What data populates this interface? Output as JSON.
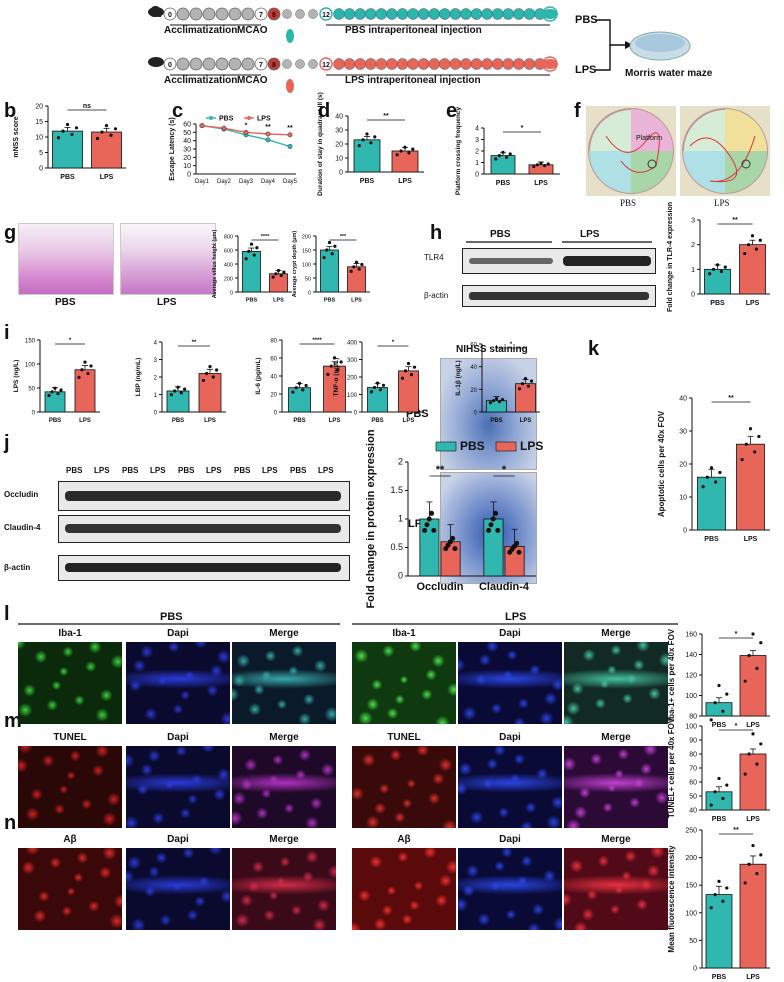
{
  "panel_letters": [
    "a",
    "b",
    "c",
    "d",
    "e",
    "f",
    "g",
    "h",
    "i",
    "j",
    "k",
    "l",
    "m",
    "n"
  ],
  "timeline": {
    "days_top": [
      "0",
      "7",
      "8",
      "12",
      "40"
    ],
    "days_bottom": [
      "0",
      "7",
      "8",
      "12",
      "40"
    ],
    "acclimatization": "Acclimatization",
    "mcao": "MCAO",
    "pbs_injection": "PBS intraperitoneal injection",
    "lps_injection": "LPS intraperitoneal injection",
    "pbs": "PBS",
    "lps": "LPS",
    "morris": "Morris water maze",
    "colors": {
      "teal": "#2bb5ad",
      "red": "#e8655a",
      "gray": "#b3b3b3",
      "mcao": "#c23b36"
    }
  },
  "groups": {
    "pbs": "PBS",
    "lps": "LPS"
  },
  "colors": {
    "pbs": "#1aa39a",
    "lps": "#e8655a",
    "pbs_light": "#2fb7b0"
  },
  "g_images": {
    "pbs": "PBS",
    "lps": "LPS"
  },
  "h_blot": {
    "tlr4": "TLR4",
    "actin": "β-actin",
    "pbs": "PBS",
    "lps": "LPS"
  },
  "j_blot": {
    "occludin": "Occludin",
    "claudin": "Claudin-4",
    "actin": "β-actin",
    "lanes": [
      "PBS",
      "LPS",
      "PBS",
      "LPS",
      "PBS",
      "LPS",
      "PBS",
      "LPS",
      "PBS",
      "LPS"
    ]
  },
  "k_images": {
    "title": "NIHSS staining",
    "pbs": "PBS",
    "lps": "LPS"
  },
  "f_maze": {
    "pbs": "PBS",
    "lps": "LPS",
    "quadrants": [
      "I",
      "II",
      "III",
      "IV"
    ],
    "platform": "Platform"
  },
  "fluor": {
    "pbs_header": "PBS",
    "lps_header": "LPS",
    "l_cols": [
      "Iba-1",
      "Dapi",
      "Merge",
      "Iba-1",
      "Dapi",
      "Merge"
    ],
    "m_cols": [
      "TUNEL",
      "Dapi",
      "Merge",
      "TUNEL",
      "Dapi",
      "Merge"
    ],
    "n_cols": [
      "Aβ",
      "Dapi",
      "Merge",
      "Aβ",
      "Dapi",
      "Merge"
    ]
  },
  "chart_data": [
    {
      "id": "b",
      "type": "bar",
      "categories": [
        "PBS",
        "LPS"
      ],
      "values": [
        11.9,
        11.6
      ],
      "ylabel": "mNSS score",
      "ylim": [
        0,
        20
      ],
      "yticks": [
        0,
        5,
        10,
        15,
        20
      ],
      "sig": "ns"
    },
    {
      "id": "c",
      "type": "line",
      "x": [
        "Day1",
        "Day2",
        "Day3",
        "Day4",
        "Day5"
      ],
      "series": [
        {
          "name": "PBS",
          "values": [
            58,
            54,
            47,
            41,
            33
          ]
        },
        {
          "name": "LPS",
          "values": [
            58,
            55,
            50,
            48,
            47
          ]
        }
      ],
      "ylabel": "Escape Latency (s)",
      "ylim": [
        0,
        60
      ],
      "yticks": [
        0,
        10,
        20,
        30,
        40,
        50,
        60
      ],
      "sig": [
        "*",
        "**",
        "**"
      ]
    },
    {
      "id": "d",
      "type": "bar",
      "categories": [
        "PBS",
        "LPS"
      ],
      "values": [
        23,
        15
      ],
      "ylabel": "Duration of stay in quadrant III (s)",
      "ylim": [
        0,
        40
      ],
      "yticks": [
        0,
        10,
        20,
        30,
        40
      ],
      "sig": "**"
    },
    {
      "id": "e",
      "type": "bar",
      "categories": [
        "PBS",
        "LPS"
      ],
      "values": [
        1.6,
        0.8
      ],
      "ylabel": "Platform crossing frequency",
      "ylim": [
        0,
        4
      ],
      "yticks": [
        0,
        1,
        2,
        3,
        4
      ],
      "sig": "*"
    },
    {
      "id": "g1",
      "type": "bar",
      "categories": [
        "PBS",
        "LPS"
      ],
      "values": [
        580,
        260
      ],
      "ylabel": "Average villus height (μm)",
      "ylim": [
        0,
        800
      ],
      "yticks": [
        0,
        200,
        400,
        600,
        800
      ],
      "sig": "****"
    },
    {
      "id": "g2",
      "type": "bar",
      "categories": [
        "PBS",
        "LPS"
      ],
      "values": [
        150,
        90
      ],
      "ylabel": "Average crypt depth (μm)",
      "ylim": [
        0,
        200
      ],
      "yticks": [
        0,
        50,
        100,
        150,
        200
      ],
      "sig": "***"
    },
    {
      "id": "h",
      "type": "bar",
      "categories": [
        "PBS",
        "LPS"
      ],
      "values": [
        1.0,
        2.0
      ],
      "ylabel": "Fold change in TLR-4 expression",
      "ylim": [
        0,
        3
      ],
      "yticks": [
        0,
        1,
        2,
        3
      ],
      "sig": "**"
    },
    {
      "id": "i1",
      "type": "bar",
      "categories": [
        "PBS",
        "LPS"
      ],
      "values": [
        42,
        88
      ],
      "ylabel": "LPS (ng/L)",
      "ylim": [
        0,
        150
      ],
      "yticks": [
        0,
        50,
        100,
        150
      ],
      "sig": "*"
    },
    {
      "id": "i2",
      "type": "bar",
      "categories": [
        "PBS",
        "LPS"
      ],
      "values": [
        1.2,
        2.2
      ],
      "ylabel": "LBP (ng/mL)",
      "ylim": [
        0,
        4
      ],
      "yticks": [
        0,
        1,
        2,
        3,
        4
      ],
      "sig": "**"
    },
    {
      "id": "i3",
      "type": "bar",
      "categories": [
        "PBS",
        "LPS"
      ],
      "values": [
        27,
        51
      ],
      "ylabel": "IL-6 (pg/mL)",
      "ylim": [
        0,
        80
      ],
      "yticks": [
        0,
        20,
        40,
        60,
        80
      ],
      "sig": "****"
    },
    {
      "id": "i4",
      "type": "bar",
      "categories": [
        "PBS",
        "LPS"
      ],
      "values": [
        140,
        235
      ],
      "ylabel": "TNF-α (ng/L)",
      "ylim": [
        0,
        400
      ],
      "yticks": [
        0,
        100,
        200,
        300,
        400
      ],
      "sig": "*"
    },
    {
      "id": "i5",
      "type": "bar",
      "categories": [
        "PBS",
        "LPS"
      ],
      "values": [
        10,
        25
      ],
      "ylabel": "IL-1β (ng/L)",
      "ylim": [
        0,
        60
      ],
      "yticks": [
        0,
        20,
        40,
        60
      ],
      "sig": "*"
    },
    {
      "id": "j",
      "type": "bar",
      "categories": [
        "Occludin",
        "Claudin-4"
      ],
      "series": [
        {
          "name": "PBS",
          "values": [
            1.0,
            1.0
          ]
        },
        {
          "name": "LPS",
          "values": [
            0.6,
            0.52
          ]
        }
      ],
      "ylabel": "Fold change in protein expression",
      "ylim": [
        0,
        2.0
      ],
      "yticks": [
        0.0,
        0.5,
        1.0,
        1.5,
        2.0
      ],
      "sig": [
        "**",
        "*"
      ]
    },
    {
      "id": "k",
      "type": "bar",
      "categories": [
        "PBS",
        "LPS"
      ],
      "values": [
        16,
        26
      ],
      "ylabel": "Apoptotic cells per 40x FOV",
      "ylim": [
        0,
        40
      ],
      "yticks": [
        0,
        10,
        20,
        30,
        40
      ],
      "sig": "**"
    },
    {
      "id": "l",
      "type": "bar",
      "categories": [
        "PBS",
        "LPS"
      ],
      "values": [
        93,
        139
      ],
      "ylabel": "Iba-1+ cells per 40x FOV",
      "ylim": [
        80,
        160
      ],
      "yticks": [
        80,
        100,
        120,
        140,
        160
      ],
      "sig": "*"
    },
    {
      "id": "m",
      "type": "bar",
      "categories": [
        "PBS",
        "LPS"
      ],
      "values": [
        53,
        80
      ],
      "ylabel": "TUNEL+ cells per 40x FOV",
      "ylim": [
        40,
        100
      ],
      "yticks": [
        40,
        50,
        60,
        70,
        80,
        90,
        100
      ],
      "sig": "*"
    },
    {
      "id": "n",
      "type": "bar",
      "categories": [
        "PBS",
        "LPS"
      ],
      "values": [
        133,
        188
      ],
      "ylabel": "Mean fluorescence intensity",
      "ylim": [
        0,
        250
      ],
      "yticks": [
        0,
        50,
        100,
        150,
        200,
        250
      ],
      "sig": "**"
    }
  ]
}
